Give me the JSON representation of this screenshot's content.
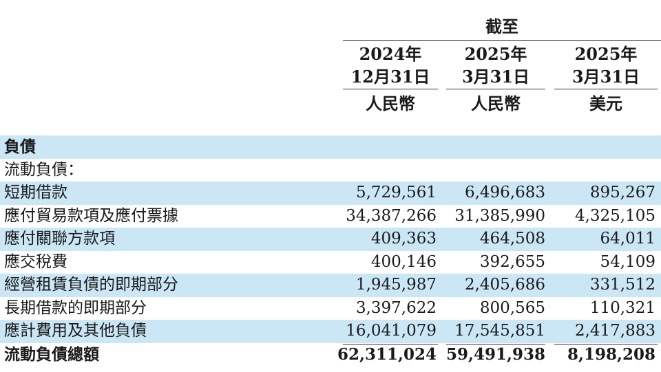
{
  "header": {
    "as_at": "截至",
    "columns": [
      {
        "year": "2024年",
        "date": "12月31日",
        "currency": "人民幣"
      },
      {
        "year": "2025年",
        "date": "3月31日",
        "currency": "人民幣"
      },
      {
        "year": "2025年",
        "date": "3月31日",
        "currency": "美元"
      }
    ]
  },
  "section_title": "負債",
  "subsection_title": "流動負債：",
  "rows": [
    {
      "label": "短期借款",
      "values": [
        "5,729,561",
        "6,496,683",
        "895,267"
      ]
    },
    {
      "label": "應付貿易款項及應付票據",
      "values": [
        "34,387,266",
        "31,385,990",
        "4,325,105"
      ]
    },
    {
      "label": "應付關聯方款項",
      "values": [
        "409,363",
        "464,508",
        "64,011"
      ]
    },
    {
      "label": "應交稅費",
      "values": [
        "400,146",
        "392,655",
        "54,109"
      ]
    },
    {
      "label": "經營租賃負債的即期部分",
      "values": [
        "1,945,987",
        "2,405,686",
        "331,512"
      ]
    },
    {
      "label": "長期借款的即期部分",
      "values": [
        "3,397,622",
        "800,565",
        "110,321"
      ]
    },
    {
      "label": "應計費用及其他負債",
      "values": [
        "16,041,079",
        "17,545,851",
        "2,417,883"
      ]
    }
  ],
  "total": {
    "label": "流動負債總額",
    "values": [
      "62,311,024",
      "59,491,938",
      "8,198,208"
    ]
  }
}
